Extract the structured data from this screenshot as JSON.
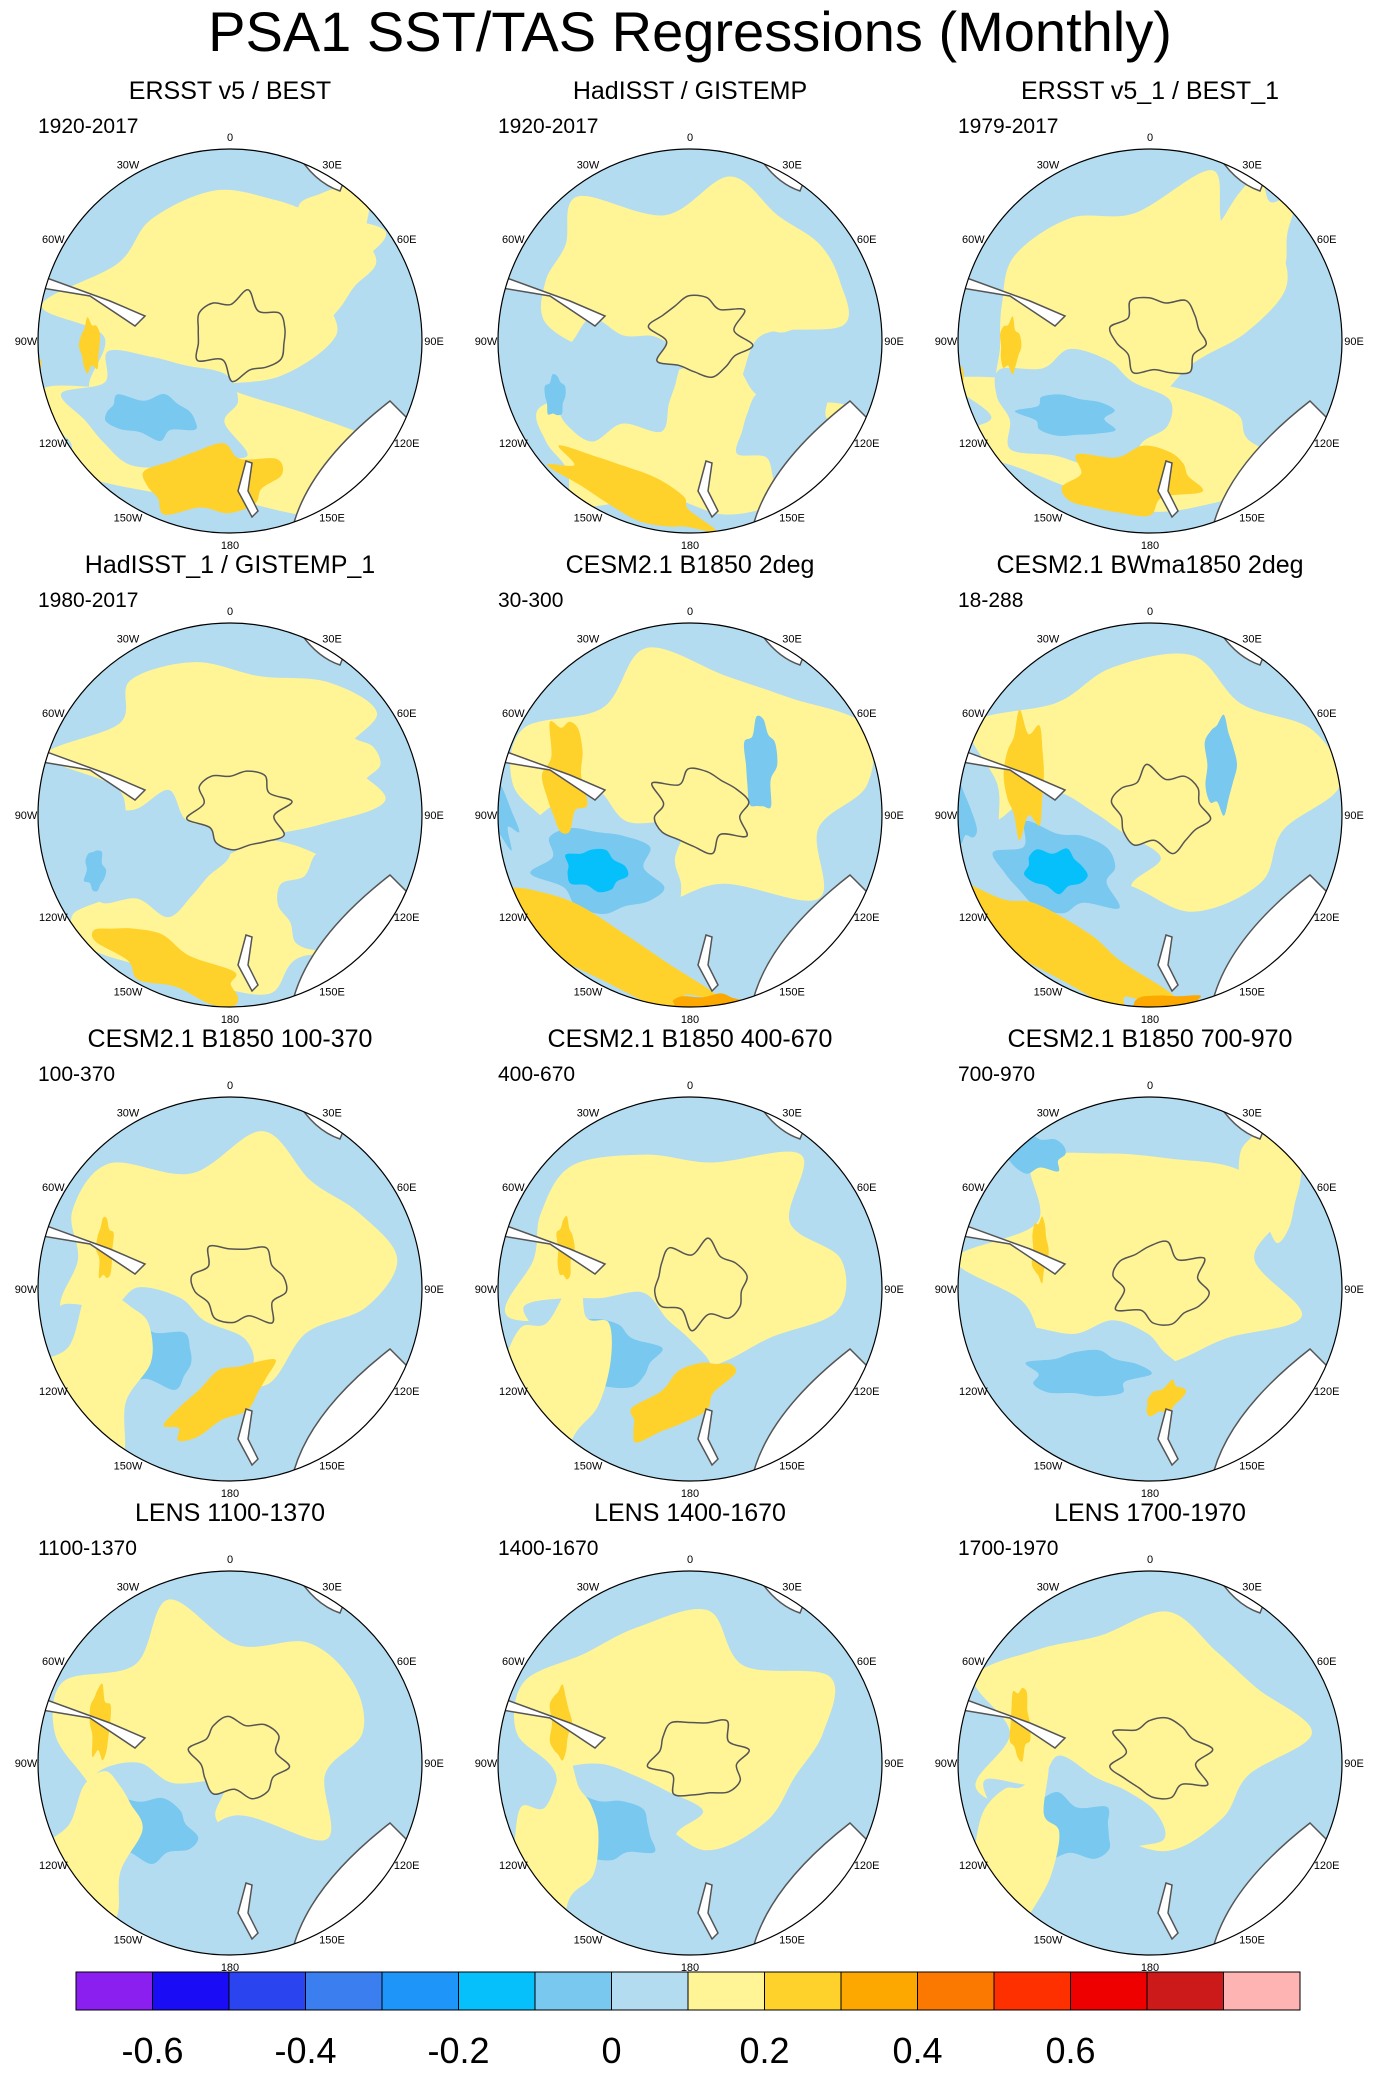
{
  "title": "PSA1 SST/TAS Regressions (Monthly)",
  "panels": [
    {
      "title": "ERSST v5 / BEST",
      "period": "1920-2017",
      "pattern": "obs"
    },
    {
      "title": "HadISST / GISTEMP",
      "period": "1920-2017",
      "pattern": "obs2"
    },
    {
      "title": "ERSST v5_1 / BEST_1",
      "period": "1979-2017",
      "pattern": "obs"
    },
    {
      "title": "HadISST_1 / GISTEMP_1",
      "period": "1980-2017",
      "pattern": "obs2"
    },
    {
      "title": "CESM2.1 B1850 2deg",
      "period": "30-300",
      "pattern": "strong"
    },
    {
      "title": "CESM2.1 BWma1850 2deg",
      "period": "18-288",
      "pattern": "strong"
    },
    {
      "title": "CESM2.1 B1850 100-370",
      "period": "100-370",
      "pattern": "model"
    },
    {
      "title": "CESM2.1 B1850 400-670",
      "period": "400-670",
      "pattern": "model"
    },
    {
      "title": "CESM2.1 B1850 700-970",
      "period": "700-970",
      "pattern": "model2"
    },
    {
      "title": "LENS 1100-1370",
      "period": "1100-1370",
      "pattern": "lens"
    },
    {
      "title": "LENS 1400-1670",
      "period": "1400-1670",
      "pattern": "lens"
    },
    {
      "title": "LENS 1700-1970",
      "period": "1700-1970",
      "pattern": "lens"
    }
  ],
  "lon_labels": [
    "0",
    "30E",
    "60E",
    "90E",
    "120E",
    "150E",
    "180",
    "150W",
    "120W",
    "90W",
    "60W",
    "30W"
  ],
  "colorbar": {
    "colors": [
      "#8a1ff0",
      "#1a0cf5",
      "#2a45f0",
      "#3a7ef0",
      "#1e96f9",
      "#05c0fa",
      "#78c8f0",
      "#b4dcf0",
      "#fff596",
      "#fed22a",
      "#fca800",
      "#fb7900",
      "#ff3000",
      "#ee0000",
      "#cc1a1a",
      "#ffb4b4"
    ],
    "tick_values": [
      -0.6,
      -0.4,
      -0.2,
      0,
      0.2,
      0.4,
      0.6
    ],
    "tick_labels": [
      "-0.6",
      "-0.4",
      "-0.2",
      "0",
      "0.2",
      "0.4",
      "0.6"
    ]
  },
  "palette": {
    "pale_blue": "#b4dcf0",
    "blue": "#78c8f0",
    "deep_blue": "#05c0fa",
    "pale_yellow": "#fff596",
    "yellow": "#fed22a",
    "orange": "#fca800",
    "land": "#ffffff",
    "coast": "#555555"
  }
}
